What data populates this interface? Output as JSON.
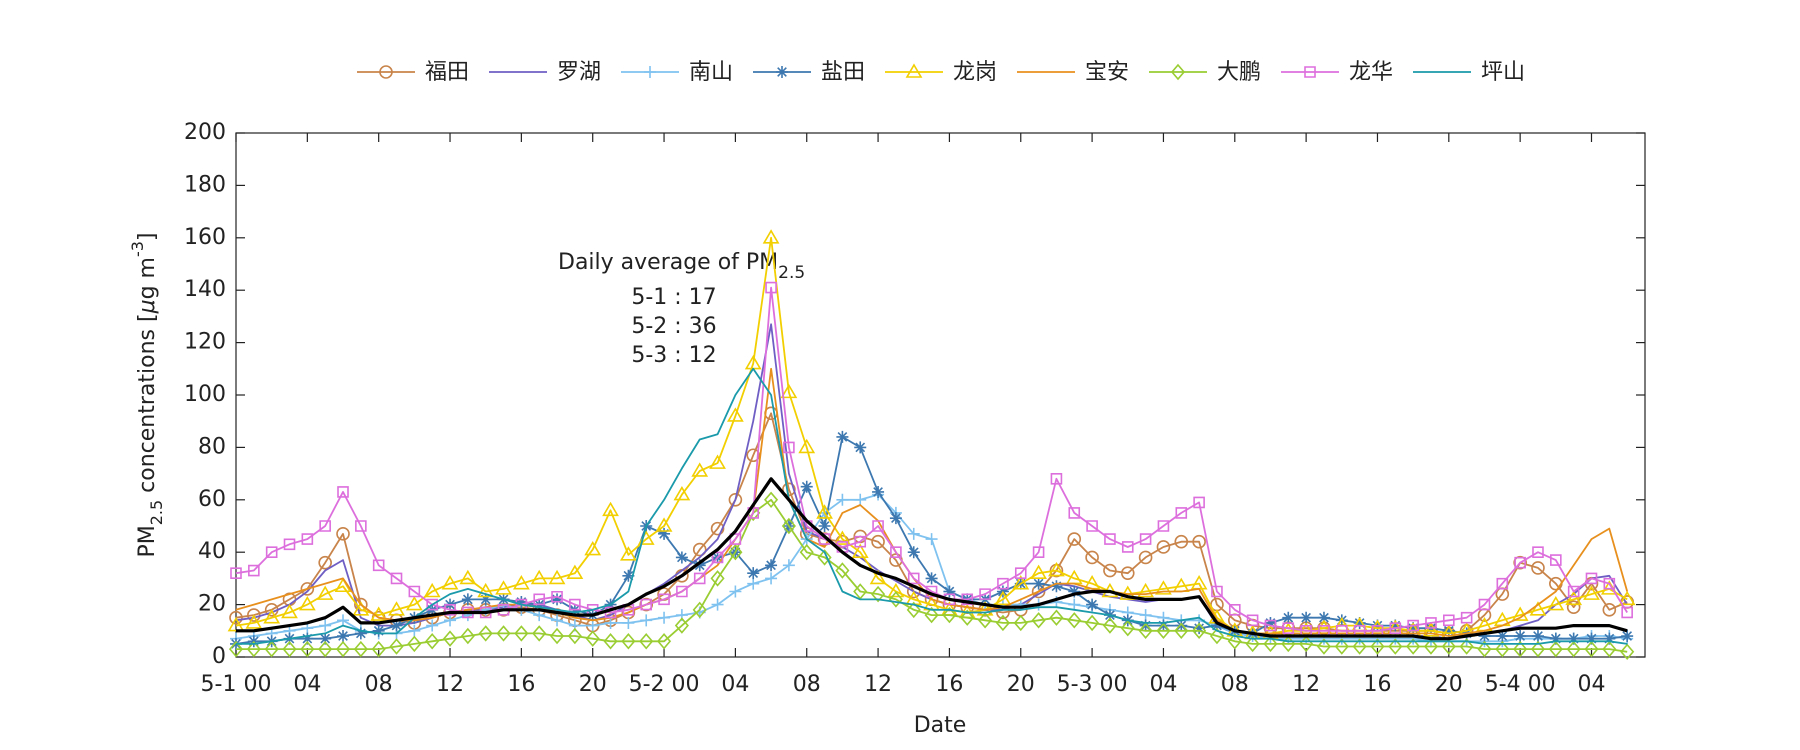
{
  "chart_data": {
    "type": "line",
    "x_label": "Date",
    "y_label": [
      "PM",
      "2.5",
      " concentrations [",
      "μ",
      "g m",
      "-3",
      "]"
    ],
    "annotation": {
      "title": "Daily average of PM",
      "title_sub": "2.5",
      "lines": [
        "5-1 : 17",
        "5-2 : 36",
        "5-3 : 12"
      ]
    },
    "xlim": [
      0,
      79
    ],
    "ylim": [
      0,
      200
    ],
    "yticks": [
      0,
      20,
      40,
      60,
      80,
      100,
      120,
      140,
      160,
      180,
      200
    ],
    "xticks": [
      {
        "value": 0,
        "label": "5-1 00"
      },
      {
        "value": 4,
        "label": "04"
      },
      {
        "value": 8,
        "label": "08"
      },
      12,
      16,
      20,
      {
        "value": 24,
        "label": "5-2 00"
      },
      {
        "value": 28,
        "label": "04"
      },
      {
        "value": 32,
        "label": "08"
      },
      {
        "value": 36,
        "label": "12"
      },
      {
        "value": 40,
        "label": "16"
      },
      {
        "value": 44,
        "label": "20"
      },
      {
        "value": 48,
        "label": "5-3 00"
      },
      {
        "value": 52,
        "label": "04"
      },
      {
        "value": 56,
        "label": "08"
      },
      {
        "value": 60,
        "label": "12"
      },
      {
        "value": 64,
        "label": "16"
      },
      {
        "value": 68,
        "label": "20"
      },
      {
        "value": 72,
        "label": "5-4 00"
      },
      {
        "value": 76,
        "label": "04"
      }
    ],
    "legend": "top",
    "x": [
      0,
      1,
      2,
      3,
      4,
      5,
      6,
      7,
      8,
      9,
      10,
      11,
      12,
      13,
      14,
      15,
      16,
      17,
      18,
      19,
      20,
      21,
      22,
      23,
      24,
      25,
      26,
      27,
      28,
      29,
      30,
      31,
      32,
      33,
      34,
      35,
      36,
      37,
      38,
      39,
      40,
      41,
      42,
      43,
      44,
      45,
      46,
      47,
      48,
      49,
      50,
      51,
      52,
      53,
      54,
      55,
      56,
      57,
      58,
      59,
      60,
      61,
      62,
      63,
      64,
      65,
      66,
      67,
      68,
      69,
      70,
      71,
      72,
      73,
      74,
      75,
      76,
      77,
      78
    ],
    "series": [
      {
        "name": "福田",
        "color": "#c8844a",
        "marker": "o",
        "values": [
          15,
          16,
          18,
          22,
          26,
          36,
          47,
          20,
          15,
          14,
          13,
          15,
          17,
          18,
          18,
          18,
          19,
          18,
          16,
          14,
          12,
          14,
          17,
          20,
          24,
          31,
          41,
          49,
          60,
          77,
          93,
          64,
          47,
          45,
          44,
          46,
          44,
          37,
          25,
          22,
          20,
          19,
          18,
          17,
          18,
          25,
          33,
          45,
          38,
          33,
          32,
          38,
          42,
          44,
          44,
          20,
          14,
          12,
          11,
          11,
          11,
          11,
          10,
          10,
          10,
          10,
          10,
          10,
          9,
          10,
          16,
          24,
          36,
          34,
          28,
          19,
          28,
          18,
          21
        ]
      },
      {
        "name": "罗湖",
        "color": "#6f5fc4",
        "marker": "none",
        "values": [
          14,
          15,
          17,
          20,
          25,
          33,
          37,
          15,
          12,
          12,
          13,
          15,
          17,
          18,
          18,
          19,
          20,
          20,
          18,
          16,
          14,
          16,
          20,
          24,
          28,
          33,
          38,
          45,
          60,
          90,
          127,
          70,
          48,
          45,
          42,
          38,
          33,
          29,
          25,
          22,
          20,
          19,
          18,
          18,
          20,
          24,
          28,
          27,
          25,
          23,
          22,
          21,
          22,
          22,
          23,
          12,
          9,
          8,
          8,
          8,
          8,
          8,
          8,
          8,
          8,
          8,
          8,
          8,
          7,
          8,
          9,
          10,
          12,
          14,
          20,
          24,
          30,
          31,
          20
        ]
      },
      {
        "name": "南山",
        "color": "#7fc2f0",
        "marker": "+",
        "values": [
          7,
          8,
          9,
          10,
          11,
          12,
          14,
          10,
          9,
          9,
          10,
          12,
          14,
          16,
          18,
          20,
          18,
          16,
          14,
          12,
          12,
          13,
          13,
          14,
          15,
          16,
          17,
          20,
          25,
          28,
          30,
          35,
          45,
          55,
          60,
          60,
          62,
          55,
          47,
          45,
          25,
          22,
          20,
          20,
          20,
          20,
          21,
          20,
          19,
          18,
          17,
          16,
          15,
          14,
          14,
          12,
          9,
          8,
          7,
          7,
          7,
          7,
          7,
          7,
          7,
          7,
          7,
          6,
          6,
          6,
          6,
          6,
          7,
          7,
          7,
          7,
          8,
          8,
          7
        ]
      },
      {
        "name": "盐田",
        "color": "#3d78b0",
        "marker": "*",
        "values": [
          5,
          6,
          6,
          7,
          7,
          7,
          8,
          9,
          10,
          12,
          15,
          18,
          20,
          22,
          22,
          22,
          21,
          20,
          22,
          18,
          16,
          20,
          31,
          50,
          47,
          38,
          35,
          38,
          40,
          32,
          35,
          50,
          65,
          50,
          84,
          80,
          63,
          53,
          40,
          30,
          25,
          22,
          22,
          25,
          28,
          28,
          27,
          25,
          20,
          16,
          14,
          12,
          12,
          12,
          11,
          12,
          10,
          9,
          13,
          15,
          15,
          15,
          14,
          13,
          12,
          12,
          11,
          11,
          10,
          9,
          8,
          8,
          8,
          8,
          7,
          7,
          7,
          7,
          8
        ]
      },
      {
        "name": "龙岗",
        "color": "#f2cf00",
        "marker": "^",
        "values": [
          12,
          13,
          15,
          17,
          20,
          24,
          27,
          18,
          16,
          18,
          20,
          25,
          28,
          30,
          25,
          26,
          28,
          30,
          30,
          32,
          41,
          56,
          39,
          45,
          50,
          62,
          71,
          74,
          92,
          112,
          160,
          101,
          80,
          55,
          45,
          40,
          30,
          25,
          22,
          20,
          18,
          17,
          18,
          22,
          28,
          32,
          33,
          30,
          28,
          25,
          24,
          25,
          26,
          27,
          28,
          15,
          10,
          9,
          9,
          10,
          10,
          11,
          12,
          12,
          11,
          11,
          10,
          10,
          9,
          10,
          12,
          14,
          16,
          18,
          20,
          22,
          24,
          26,
          22
        ]
      },
      {
        "name": "宝安",
        "color": "#e8901e",
        "marker": "none",
        "values": [
          18,
          20,
          22,
          24,
          26,
          28,
          30,
          20,
          15,
          14,
          14,
          15,
          17,
          18,
          19,
          20,
          20,
          19,
          17,
          15,
          14,
          15,
          17,
          20,
          22,
          25,
          30,
          35,
          45,
          55,
          110,
          60,
          45,
          42,
          55,
          58,
          52,
          40,
          30,
          22,
          20,
          19,
          18,
          19,
          22,
          25,
          28,
          28,
          26,
          25,
          24,
          24,
          25,
          25,
          26,
          14,
          10,
          9,
          9,
          9,
          9,
          9,
          9,
          9,
          9,
          9,
          9,
          9,
          8,
          9,
          10,
          12,
          15,
          20,
          25,
          35,
          45,
          49,
          25
        ]
      },
      {
        "name": "大鹏",
        "color": "#9acd32",
        "marker": "d",
        "values": [
          3,
          3,
          3,
          3,
          3,
          3,
          3,
          3,
          3,
          4,
          5,
          6,
          7,
          8,
          9,
          9,
          9,
          9,
          8,
          8,
          7,
          6,
          6,
          6,
          6,
          12,
          18,
          30,
          40,
          55,
          60,
          50,
          40,
          38,
          33,
          25,
          24,
          22,
          18,
          16,
          16,
          15,
          14,
          13,
          13,
          14,
          15,
          14,
          13,
          12,
          11,
          10,
          10,
          10,
          10,
          8,
          6,
          5,
          5,
          5,
          5,
          4,
          4,
          4,
          4,
          4,
          4,
          4,
          4,
          4,
          3,
          3,
          3,
          3,
          3,
          3,
          3,
          3,
          2
        ]
      },
      {
        "name": "龙华",
        "color": "#dd6fdd",
        "marker": "s",
        "values": [
          32,
          33,
          40,
          43,
          45,
          50,
          63,
          50,
          35,
          30,
          25,
          20,
          18,
          17,
          17,
          18,
          20,
          22,
          23,
          20,
          18,
          17,
          18,
          20,
          22,
          25,
          30,
          38,
          45,
          55,
          141,
          80,
          50,
          45,
          42,
          44,
          50,
          40,
          30,
          25,
          22,
          22,
          24,
          28,
          32,
          40,
          68,
          55,
          50,
          45,
          42,
          45,
          50,
          55,
          59,
          25,
          18,
          14,
          12,
          11,
          10,
          10,
          10,
          10,
          10,
          11,
          12,
          13,
          14,
          15,
          20,
          28,
          36,
          40,
          37,
          25,
          30,
          28,
          17
        ]
      },
      {
        "name": "坪山",
        "color": "#1a9aaa",
        "marker": "none",
        "values": [
          5,
          5,
          6,
          7,
          8,
          9,
          12,
          10,
          9,
          9,
          15,
          20,
          24,
          26,
          24,
          22,
          20,
          19,
          18,
          17,
          18,
          20,
          25,
          50,
          60,
          72,
          83,
          85,
          100,
          110,
          100,
          60,
          45,
          40,
          25,
          22,
          22,
          21,
          20,
          18,
          18,
          17,
          17,
          18,
          18,
          19,
          19,
          18,
          17,
          16,
          14,
          13,
          13,
          14,
          15,
          10,
          8,
          7,
          7,
          6,
          6,
          6,
          6,
          6,
          6,
          6,
          6,
          6,
          6,
          6,
          5,
          5,
          5,
          5,
          6,
          6,
          6,
          6,
          5
        ]
      }
    ],
    "average_line": {
      "color": "#000000",
      "values": [
        10,
        10,
        11,
        12,
        13,
        15,
        19,
        13,
        13,
        14,
        15,
        16,
        17,
        17,
        17,
        18,
        18,
        18,
        17,
        16,
        16,
        18,
        20,
        24,
        27,
        31,
        36,
        41,
        48,
        58,
        68,
        60,
        52,
        46,
        40,
        35,
        32,
        30,
        27,
        24,
        22,
        21,
        20,
        19,
        19,
        20,
        22,
        24,
        25,
        25,
        23,
        22,
        22,
        22,
        23,
        13,
        10,
        9,
        8,
        8,
        8,
        8,
        8,
        8,
        8,
        8,
        8,
        7,
        7,
        8,
        9,
        10,
        11,
        11,
        11,
        12,
        12,
        12,
        10
      ]
    }
  }
}
